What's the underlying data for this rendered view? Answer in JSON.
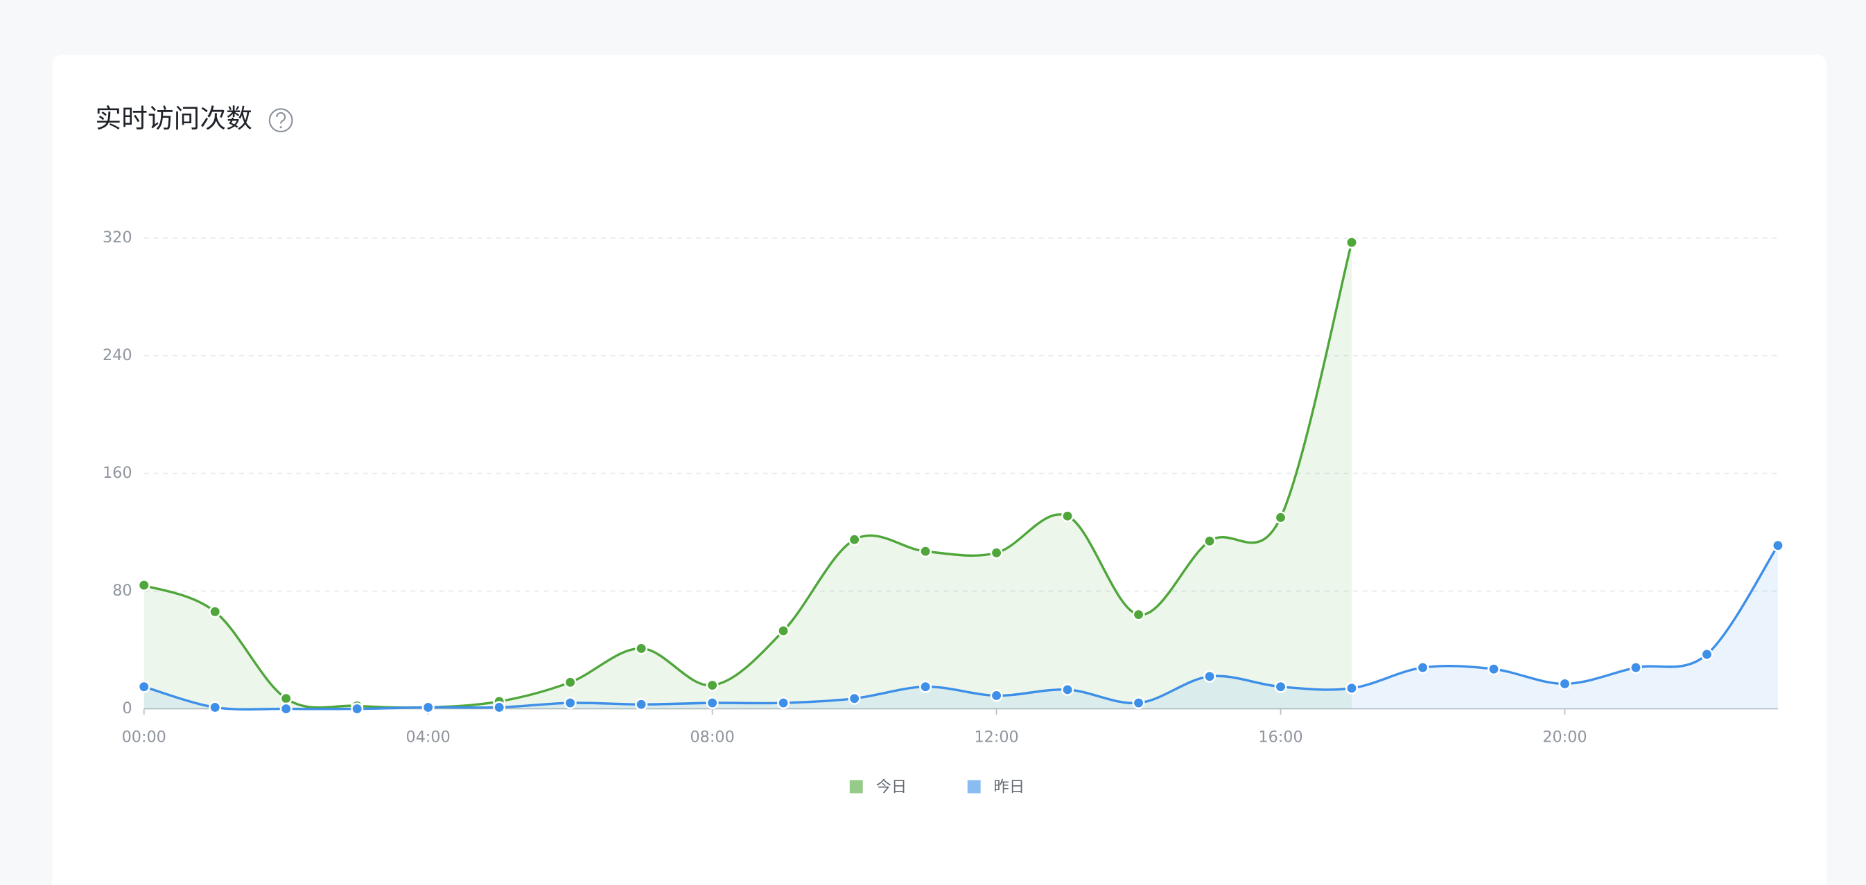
{
  "chart_data": {
    "type": "line",
    "title": "实时访问次数",
    "categories": [
      "00:00",
      null,
      null,
      null,
      "04:00",
      null,
      null,
      null,
      "08:00",
      null,
      null,
      null,
      "12:00",
      null,
      null,
      null,
      "16:00",
      null,
      null,
      null,
      "20:00",
      null,
      null,
      null
    ],
    "series": [
      {
        "name": "今日",
        "color": "#4fa63a",
        "values": [
          84,
          66,
          7,
          2,
          1,
          5,
          18,
          41,
          16,
          53,
          115,
          107,
          106,
          131,
          64,
          114,
          130,
          317,
          null,
          null,
          null,
          null,
          null,
          null
        ]
      },
      {
        "name": "昨日",
        "color": "#3d8fe8",
        "values": [
          15,
          1,
          0,
          0,
          1,
          1,
          4,
          3,
          4,
          4,
          7,
          15,
          9,
          13,
          4,
          22,
          15,
          14,
          28,
          27,
          17,
          28,
          37,
          111
        ]
      }
    ],
    "ylim": [
      0,
      320
    ],
    "yticks": [
      0,
      80,
      160,
      240,
      320
    ],
    "grid": true,
    "legend": "bottom"
  }
}
